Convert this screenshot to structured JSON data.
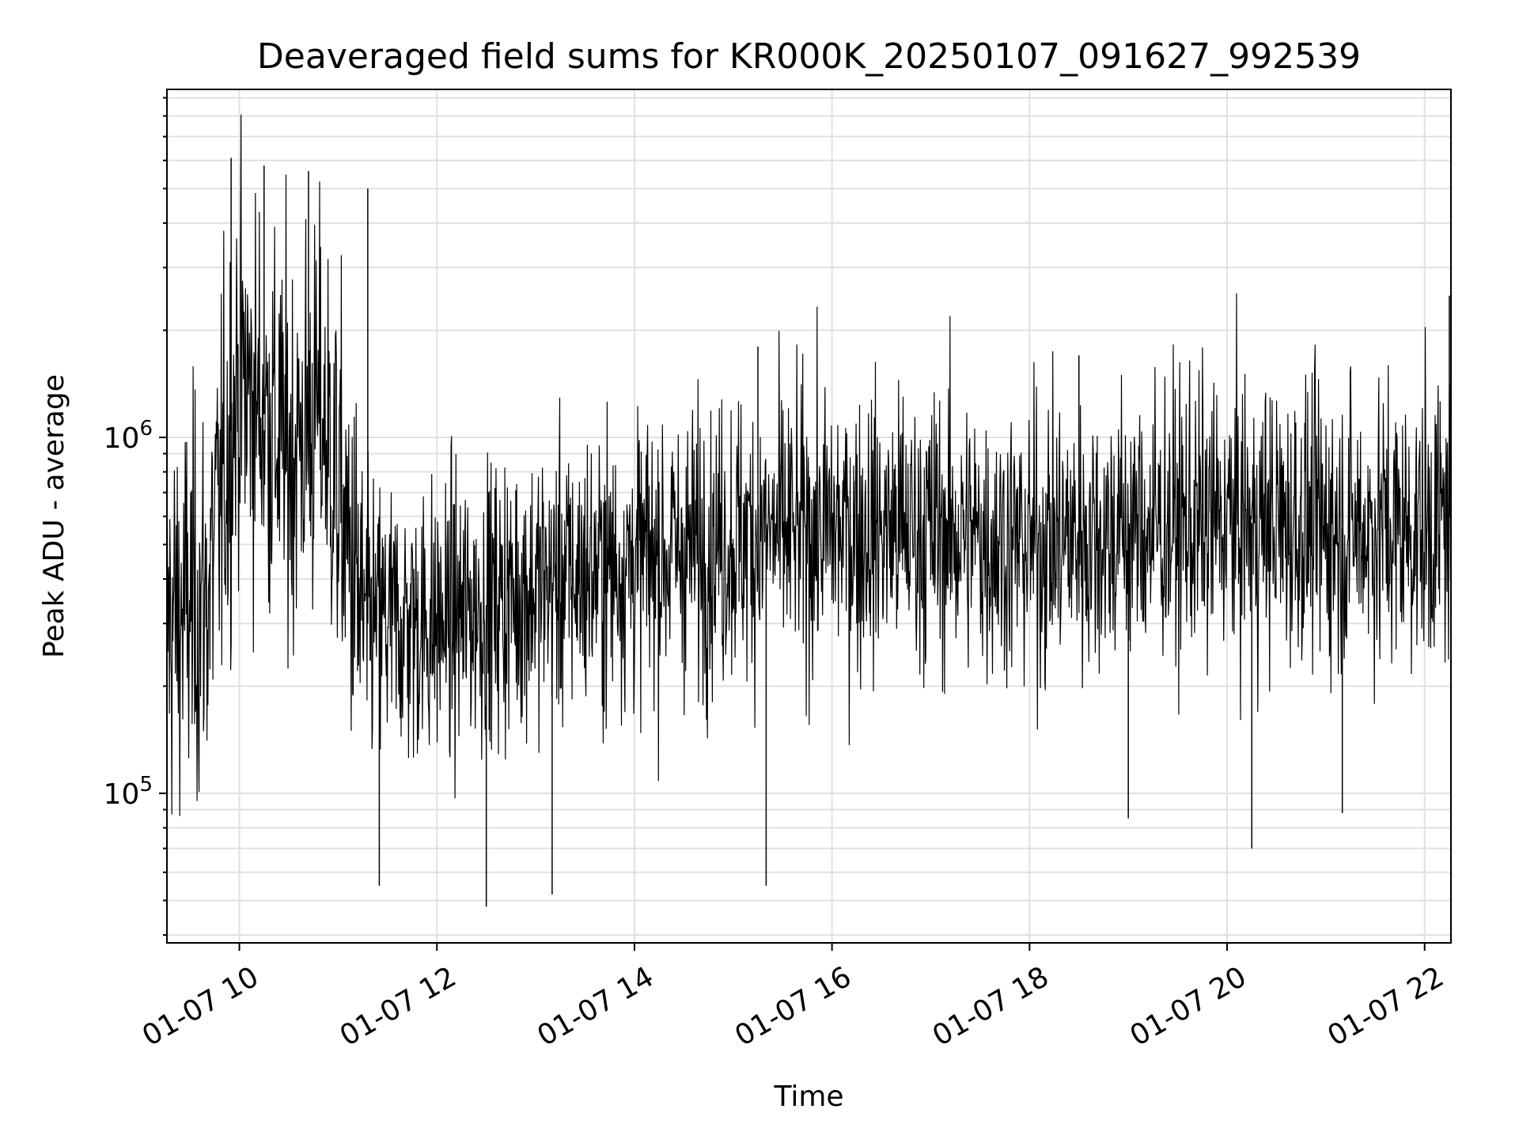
{
  "chart_data": {
    "type": "line",
    "title": "Deaveraged field sums for KR000K_20250107_091627_992539",
    "xlabel": "Time",
    "ylabel": "Peak ADU - average",
    "yscale": "log",
    "xlim": [
      "01-07 09:16",
      "01-07 22:16"
    ],
    "ylim": [
      38000,
      9500000
    ],
    "grid": true,
    "line_color": "#000000",
    "x_ticks": [
      "01-07 10",
      "01-07 12",
      "01-07 14",
      "01-07 16",
      "01-07 18",
      "01-07 20",
      "01-07 22"
    ],
    "y_ticks": [
      {
        "base": "10",
        "exp": "5"
      },
      {
        "base": "10",
        "exp": "6"
      }
    ],
    "series": [
      {
        "values": [
          {
            "x": "01-07 09:16",
            "y": 300000
          },
          {
            "x": "01-07 09:40",
            "y": 350000
          },
          {
            "x": "01-07 10:00",
            "y": 1500000
          },
          {
            "x": "01-07 10:30",
            "y": 900000
          },
          {
            "x": "01-07 10:50",
            "y": 1200000
          },
          {
            "x": "01-07 11:15",
            "y": 300000
          },
          {
            "x": "01-07 12:00",
            "y": 300000
          },
          {
            "x": "01-07 13:00",
            "y": 380000
          },
          {
            "x": "01-07 14:00",
            "y": 450000
          },
          {
            "x": "01-07 15:00",
            "y": 520000
          },
          {
            "x": "01-07 16:00",
            "y": 550000
          },
          {
            "x": "01-07 17:00",
            "y": 550000
          },
          {
            "x": "01-07 18:00",
            "y": 500000
          },
          {
            "x": "01-07 19:00",
            "y": 550000
          },
          {
            "x": "01-07 20:00",
            "y": 580000
          },
          {
            "x": "01-07 21:00",
            "y": 560000
          },
          {
            "x": "01-07 22:00",
            "y": 550000
          },
          {
            "x": "01-07 22:16",
            "y": 600000
          }
        ],
        "spikes": [
          {
            "x": "01-07 09:55",
            "y": 6100000
          },
          {
            "x": "01-07 10:15",
            "y": 5800000
          },
          {
            "x": "01-07 10:42",
            "y": 5600000
          },
          {
            "x": "01-07 11:18",
            "y": 5000000
          },
          {
            "x": "01-07 15:15",
            "y": 1800000
          },
          {
            "x": "01-07 18:30",
            "y": 1700000
          },
          {
            "x": "01-07 22:15",
            "y": 2500000
          }
        ],
        "dips": [
          {
            "x": "01-07 12:30",
            "y": 48000
          },
          {
            "x": "01-07 13:10",
            "y": 52000
          },
          {
            "x": "01-07 11:25",
            "y": 55000
          },
          {
            "x": "01-07 15:20",
            "y": 55000
          },
          {
            "x": "01-07 19:00",
            "y": 85000
          },
          {
            "x": "01-07 20:15",
            "y": 70000
          },
          {
            "x": "01-07 21:10",
            "y": 88000
          }
        ],
        "noise_decades": 0.2
      }
    ]
  }
}
